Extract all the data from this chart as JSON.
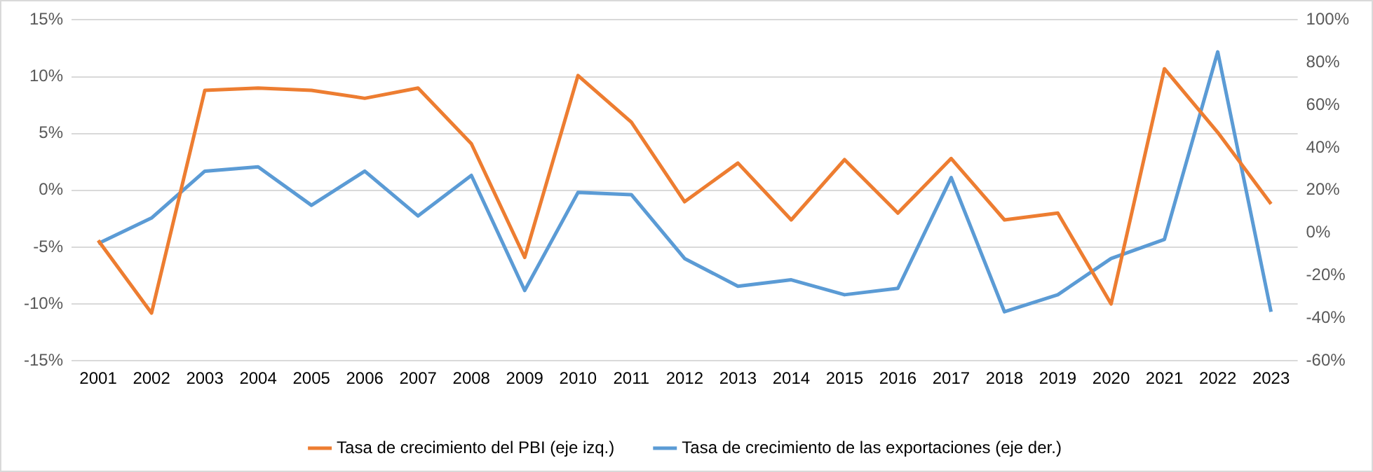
{
  "chart_data": {
    "type": "line",
    "categories": [
      "2001",
      "2002",
      "2003",
      "2004",
      "2005",
      "2006",
      "2007",
      "2008",
      "2009",
      "2010",
      "2011",
      "2012",
      "2013",
      "2014",
      "2015",
      "2016",
      "2017",
      "2018",
      "2019",
      "2020",
      "2021",
      "2022",
      "2023"
    ],
    "series": [
      {
        "name": "Tasa de crecimiento del PBI (eje izq.)",
        "color": "#ed7d31",
        "values": [
          -4.4,
          -10.8,
          8.8,
          9.0,
          8.8,
          8.1,
          9.0,
          4.1,
          -5.9,
          10.1,
          6.0,
          -1.0,
          2.4,
          -2.6,
          2.7,
          -2.0,
          2.8,
          -2.6,
          -2.0,
          -10.0,
          10.7,
          5.1,
          -1.2
        ]
      },
      {
        "name": "Tasa de crecimiento de las exportaciones (eje der.)",
        "color": "#5b9bd5",
        "axis": "y2",
        "values": [
          -5,
          7,
          29,
          31,
          13,
          29,
          8,
          27,
          -27,
          19,
          18,
          -12,
          -25,
          -22,
          -29,
          -26,
          26,
          -37,
          -29,
          -12,
          -3,
          85,
          -37
        ]
      }
    ],
    "ylim": [
      -15,
      15
    ],
    "yticks": [
      {
        "value": -15,
        "label": "-15%"
      },
      {
        "value": -10,
        "label": "-10%"
      },
      {
        "value": -5,
        "label": "-5%"
      },
      {
        "value": 0,
        "label": "0%"
      },
      {
        "value": 5,
        "label": "5%"
      },
      {
        "value": 10,
        "label": "10%"
      },
      {
        "value": 15,
        "label": "15%"
      }
    ],
    "y2lim": [
      -60,
      100
    ],
    "y2ticks": [
      {
        "value": -60,
        "label": "-60%"
      },
      {
        "value": -40,
        "label": "-40%"
      },
      {
        "value": -20,
        "label": "-20%"
      },
      {
        "value": 0,
        "label": "0%"
      },
      {
        "value": 20,
        "label": "20%"
      },
      {
        "value": 40,
        "label": "40%"
      },
      {
        "value": 60,
        "label": "60%"
      },
      {
        "value": 80,
        "label": "80%"
      },
      {
        "value": 100,
        "label": "100%"
      }
    ],
    "grid": "y",
    "legend": "bottom",
    "marker": "none",
    "line_style": "solid"
  }
}
